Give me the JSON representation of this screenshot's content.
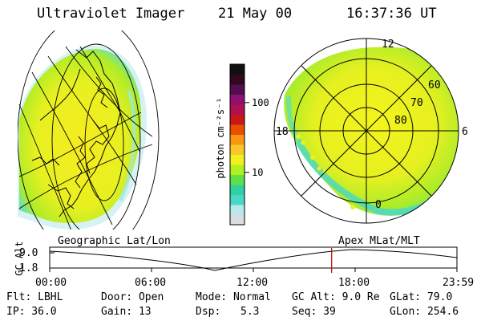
{
  "header": {
    "title": "Ultraviolet Imager",
    "date": "21 May 00",
    "time": "16:37:36 UT"
  },
  "colorbar": {
    "unit_label": "photon cm⁻²s⁻¹",
    "ticks": [
      {
        "label": "100",
        "value": 100
      },
      {
        "label": "10",
        "value": 10
      }
    ],
    "colors": [
      "#d9dde0",
      "#b8e8ec",
      "#48d8c8",
      "#30d0a0",
      "#60e048",
      "#b0f020",
      "#f0f020",
      "#f8c828",
      "#f89810",
      "#e85000",
      "#c81818",
      "#b01050",
      "#901070",
      "#501050",
      "#300820",
      "#101010"
    ]
  },
  "left_panel": {
    "label": "Geographic Lat/Lon"
  },
  "right_panel": {
    "label": "Apex MLat/MLT",
    "mlt_labels": [
      "12",
      "18",
      "6",
      "0"
    ],
    "mlat_labels": [
      "60",
      "70",
      "80"
    ]
  },
  "timeline": {
    "ylabel": "GC Alt",
    "y_ticks": [
      "9.0",
      "1.8"
    ],
    "x_ticks": [
      "00:00",
      "06:00",
      "12:00",
      "18:00",
      "23:59"
    ],
    "current_time": "16:37",
    "accent_color": "#c00000"
  },
  "info": {
    "filter": "Flt: LBHL",
    "door": "Door: Open",
    "mode": "Mode: Normal",
    "gc_alt": "GC Alt: 9.0 Re",
    "glat": "GLat: 79.0",
    "ip": "IP: 36.0",
    "gain": "Gain: 13",
    "dsp_label": "Dsp:",
    "dsp_value": "5.3",
    "seq": "Seq: 39",
    "glon": "GLon: 254.6"
  }
}
